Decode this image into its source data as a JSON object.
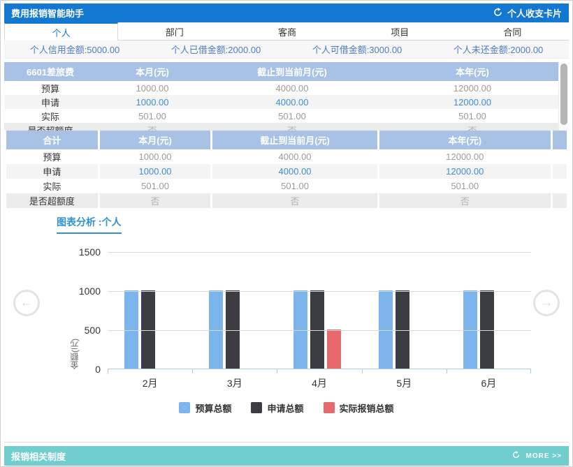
{
  "header": {
    "title": "费用报销智能助手",
    "action_label": "个人收支卡片"
  },
  "tabs": [
    {
      "label": "个人",
      "active": true
    },
    {
      "label": "部门",
      "active": false
    },
    {
      "label": "客商",
      "active": false
    },
    {
      "label": "项目",
      "active": false
    },
    {
      "label": "合同",
      "active": false
    }
  ],
  "summary": [
    {
      "label": "个人信用金额",
      "value": "5000.00"
    },
    {
      "label": "个人已借金额",
      "value": "2000.00"
    },
    {
      "label": "个人可借金额",
      "value": "3000.00"
    },
    {
      "label": "个人未还金额",
      "value": "2000.00"
    }
  ],
  "tables": [
    {
      "name": "6601差旅费",
      "columns": [
        "本月(元)",
        "截止到当前月(元)",
        "本年(元)"
      ],
      "rows": [
        {
          "label": "预算",
          "values": [
            "1000.00",
            "4000.00",
            "12000.00"
          ]
        },
        {
          "label": "申请",
          "values": [
            "1000.00",
            "4000.00",
            "12000.00"
          ]
        },
        {
          "label": "实际",
          "values": [
            "501.00",
            "501.00",
            "501.00"
          ]
        },
        {
          "label": "是否超额度",
          "values": [
            "否",
            "否",
            "否"
          ]
        }
      ],
      "scrollable": true,
      "spacer_column": false
    },
    {
      "name": "合计",
      "columns": [
        "本月(元)",
        "截止到当前月(元)",
        "本年(元)"
      ],
      "rows": [
        {
          "label": "预算",
          "values": [
            "1000.00",
            "4000.00",
            "12000.00"
          ]
        },
        {
          "label": "申请",
          "values": [
            "1000.00",
            "4000.00",
            "12000.00"
          ]
        },
        {
          "label": "实际",
          "values": [
            "501.00",
            "501.00",
            "501.00"
          ]
        },
        {
          "label": "是否超额度",
          "values": [
            "否",
            "否",
            "否"
          ]
        }
      ],
      "scrollable": false,
      "spacer_column": true
    }
  ],
  "chart_section_title": "图表分析 :个人",
  "chart_data": {
    "type": "bar",
    "categories": [
      "2月",
      "3月",
      "4月",
      "5月",
      "6月"
    ],
    "series": [
      {
        "name": "预算总额",
        "color": "#7cb5ec",
        "values": [
          1000,
          1000,
          1000,
          1000,
          1000
        ]
      },
      {
        "name": "申请总额",
        "color": "#3c3c43",
        "values": [
          1000,
          1000,
          1000,
          1000,
          1000
        ]
      },
      {
        "name": "实际报销总额",
        "color": "#e8696b",
        "values": [
          0,
          0,
          501,
          0,
          0
        ]
      }
    ],
    "title": "",
    "xlabel": "",
    "ylabel": "金额(元)",
    "ylim": [
      0,
      1500
    ],
    "yticks": [
      0,
      500,
      1000,
      1500
    ],
    "grid": true,
    "legend_position": "bottom"
  },
  "carousel": {
    "prev_glyph": "←",
    "next_glyph": "→"
  },
  "footer": {
    "title": "报销相关制度",
    "more_label": "MORE >>"
  },
  "colors": {
    "header_blue": "#1278d2",
    "table_header": "#a8c2e6",
    "summary_text": "#4e7bc4",
    "footer_teal": "#70cece",
    "link_blue": "#3e8ed2"
  }
}
